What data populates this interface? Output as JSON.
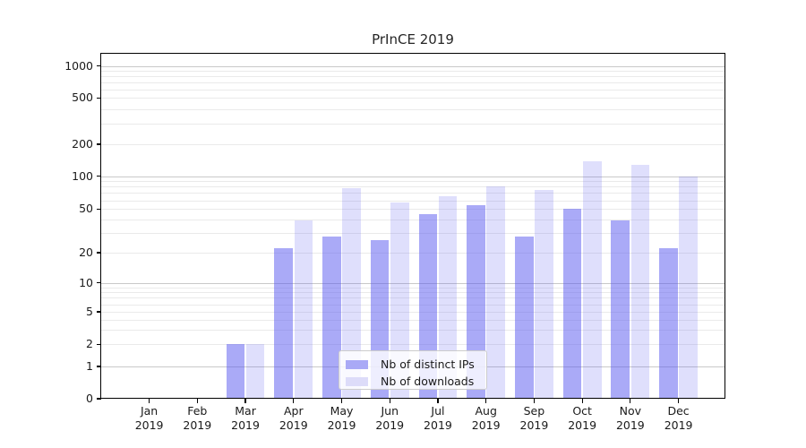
{
  "title": "PrInCE 2019",
  "legend": {
    "items": [
      {
        "label": "Nb of distinct IPs"
      },
      {
        "label": "Nb of downloads"
      }
    ]
  },
  "colors": {
    "bar_ips": "rgba(85,85,240,0.5)",
    "bar_downloads": "rgba(85,85,240,0.19)",
    "swatch_ips": "#a9a9f6",
    "swatch_downloads": "#dddcf9",
    "grid_major": "#c9c9c9",
    "grid_minor": "#eaeaea",
    "axis": "#000000",
    "text": "#1a1a1a"
  },
  "chart_data": {
    "type": "bar",
    "title": "PrInCE 2019",
    "xlabel": "",
    "ylabel": "",
    "categories": [
      "Jan",
      "Feb",
      "Mar",
      "Apr",
      "May",
      "Jun",
      "Jul",
      "Aug",
      "Sep",
      "Oct",
      "Nov",
      "Dec"
    ],
    "category_year": "2019",
    "series": [
      {
        "name": "Nb of distinct IPs",
        "values": [
          0,
          0,
          2,
          22,
          28,
          26,
          45,
          54,
          28,
          50,
          39,
          22
        ]
      },
      {
        "name": "Nb of downloads",
        "values": [
          0,
          0,
          2,
          39,
          77,
          57,
          66,
          80,
          75,
          138,
          128,
          100
        ]
      }
    ],
    "yscale": "symlog",
    "yticks": [
      0,
      1,
      2,
      5,
      10,
      20,
      50,
      100,
      200,
      500,
      1000
    ],
    "minor_yticks": [
      3,
      4,
      6,
      7,
      8,
      9,
      30,
      40,
      60,
      70,
      80,
      90,
      300,
      400,
      600,
      700,
      800,
      900
    ],
    "ylim": [
      0,
      1300
    ],
    "grid": "horizontal",
    "legend_position": "lower center"
  }
}
